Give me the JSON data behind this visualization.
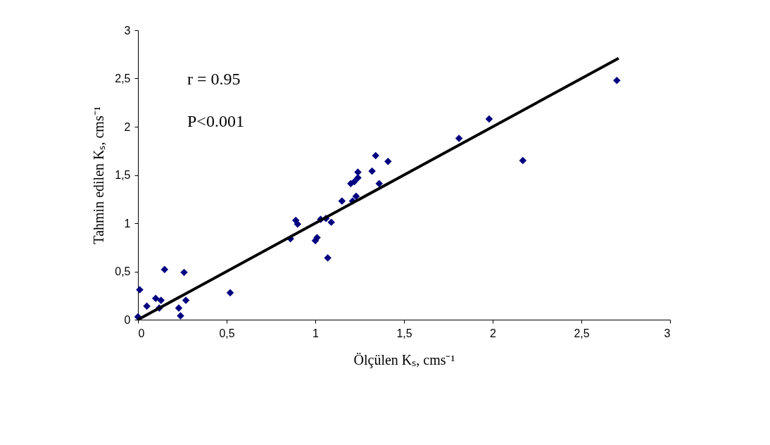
{
  "chart_data": {
    "type": "scatter",
    "xlabel": "Ölçülen Kₛ, cms⁻¹",
    "ylabel": "Tahmin edilen Kₛ, cms⁻¹",
    "annotations": [
      "r = 0.95",
      "P<0.001"
    ],
    "x": [
      0.0,
      0.01,
      0.05,
      0.1,
      0.13,
      0.12,
      0.15,
      0.23,
      0.24,
      0.26,
      0.27,
      0.52,
      0.86,
      0.89,
      0.9,
      1.0,
      1.01,
      1.03,
      1.06,
      1.07,
      1.09,
      1.15,
      1.2,
      1.22,
      1.21,
      1.24,
      1.24,
      1.23,
      1.32,
      1.34,
      1.36,
      1.41,
      1.81,
      1.98,
      2.17,
      2.7
    ],
    "series": [
      {
        "color": "#000080",
        "marker": "diamond",
        "values": [
          0.03,
          0.31,
          0.14,
          0.22,
          0.2,
          0.12,
          0.52,
          0.12,
          0.04,
          0.49,
          0.2,
          0.28,
          0.84,
          1.03,
          0.99,
          0.82,
          0.85,
          1.04,
          1.05,
          0.64,
          1.01,
          1.23,
          1.41,
          1.43,
          1.23,
          1.53,
          1.47,
          1.28,
          1.54,
          1.7,
          1.41,
          1.64,
          1.88,
          2.08,
          1.65,
          2.48
        ]
      },
      {
        "type": "line",
        "color": "#000000",
        "x": [
          0,
          2.71
        ],
        "values": [
          0,
          2.71
        ]
      }
    ],
    "xlim": [
      0,
      3
    ],
    "ylim": [
      0,
      3
    ],
    "xticks": [
      0,
      {
        "value": 0.5,
        "label": "0,5"
      },
      1,
      {
        "value": 1.5,
        "label": "1,5"
      },
      2,
      {
        "value": 2.5,
        "label": "2,5"
      },
      3
    ],
    "yticks": [
      0,
      {
        "value": 0.5,
        "label": "0,5"
      },
      1,
      {
        "value": 1.5,
        "label": "1,5"
      },
      2,
      {
        "value": 2.5,
        "label": "2,5"
      },
      3
    ],
    "grid": false
  }
}
